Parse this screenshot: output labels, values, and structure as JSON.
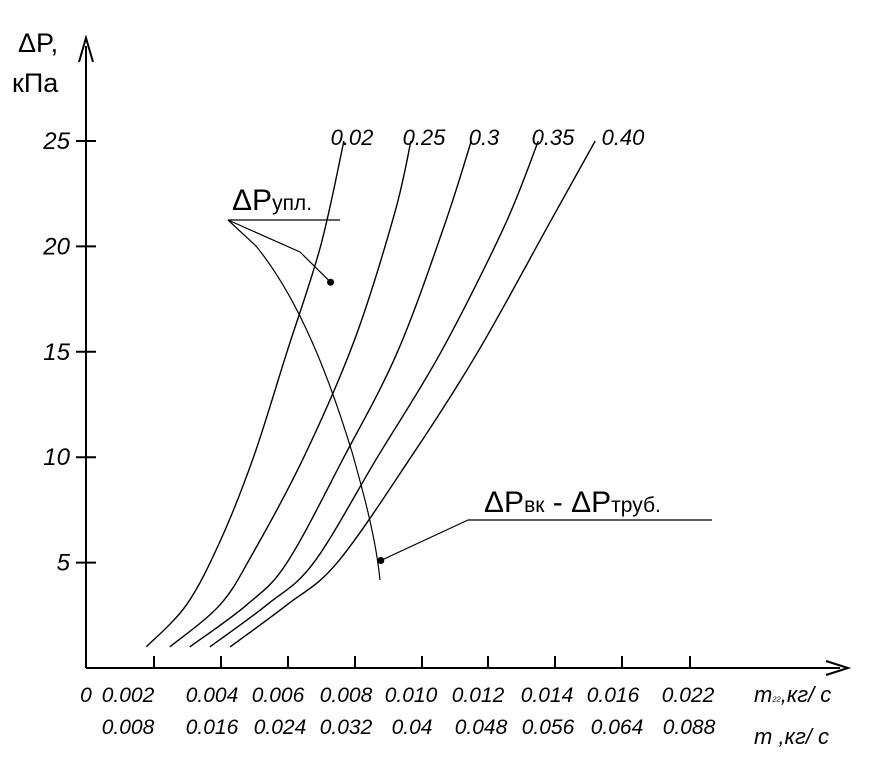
{
  "chart_data": {
    "type": "line",
    "ylabel": "ΔP,\nкПа",
    "ylim": [
      0,
      27
    ],
    "xlim": [
      0,
      0.023
    ],
    "yticks": [
      "25",
      "20",
      "15",
      "10",
      "5"
    ],
    "ytick_values": [
      25,
      20,
      15,
      10,
      5
    ],
    "xticks_primary": [
      "0",
      "0.002",
      "0.004",
      "0.006",
      "0.008",
      "0.010",
      "0.012",
      "0.014",
      "0.016",
      "0.022"
    ],
    "xticks_secondary": [
      "0.008",
      "0.016",
      "0.024",
      "0.032",
      "0.04",
      "0.048",
      "0.056",
      "0.064",
      "0.088"
    ],
    "xlabel_primary": {
      "symbol": "m",
      "sub": "₂₂",
      "unit": ",кг/ с"
    },
    "xlabel_secondary": {
      "symbol": "m",
      "unit": " ,кг/ с"
    },
    "series": [
      {
        "name": "0.02",
        "x": [
          0.0018,
          0.003,
          0.004,
          0.005,
          0.006,
          0.007,
          0.0077
        ],
        "y": [
          1,
          3,
          6,
          10,
          15,
          20,
          25
        ]
      },
      {
        "name": "0.25",
        "x": [
          0.0025,
          0.004,
          0.005,
          0.0065,
          0.008,
          0.0092,
          0.0097
        ],
        "y": [
          1,
          3,
          5.5,
          10,
          15.5,
          21.5,
          25
        ]
      },
      {
        "name": "0.3",
        "x": [
          0.0031,
          0.0048,
          0.006,
          0.0077,
          0.0093,
          0.0107,
          0.0115
        ],
        "y": [
          1,
          3,
          5,
          10,
          15,
          21,
          25
        ]
      },
      {
        "name": "0.35",
        "x": [
          0.0037,
          0.0054,
          0.0068,
          0.0087,
          0.0106,
          0.0125,
          0.0135
        ],
        "y": [
          1,
          3,
          5,
          10,
          15,
          21,
          25
        ]
      },
      {
        "name": "0.40",
        "x": [
          0.0043,
          0.006,
          0.0075,
          0.0097,
          0.0117,
          0.0138,
          0.0152
        ],
        "y": [
          1,
          3,
          5,
          10,
          15,
          21,
          25
        ]
      }
    ],
    "annotations": [
      {
        "main": "ΔP",
        "sub": "упл.",
        "point": [
          0.0073,
          18.3
        ]
      },
      {
        "main": "ΔP",
        "sub": "вк",
        "separator": " - ",
        "main2": "ΔP",
        "sub2": "труб.",
        "point": [
          0.0088,
          5.1
        ]
      }
    ]
  }
}
